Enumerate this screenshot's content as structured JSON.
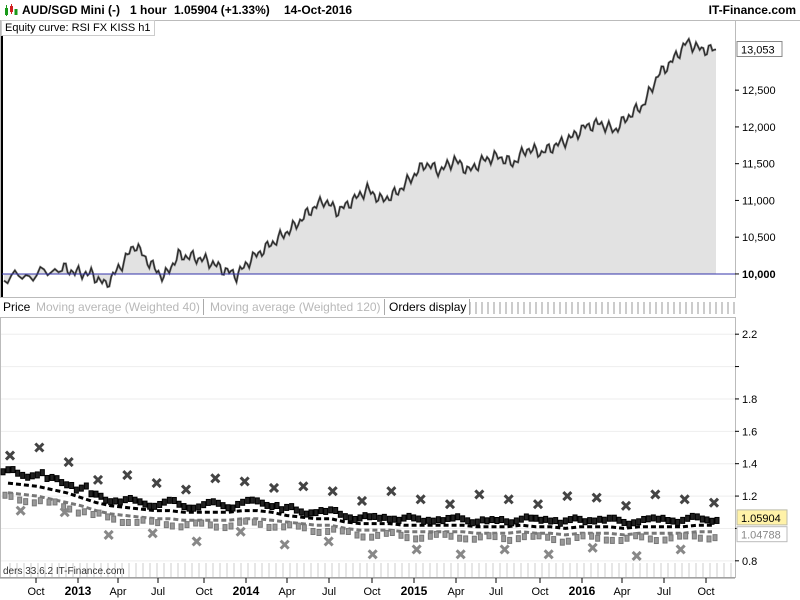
{
  "header": {
    "symbol": "AUD/SGD Mini (-)",
    "timeframe": "1 hour",
    "price_change": "1.05904 (+1.33%)",
    "date": "14-Oct-2016",
    "brand": "IT-Finance.com",
    "icon": "candlestick-chart-icon"
  },
  "equity_panel": {
    "label": "Equity curve: RSI FX KISS h1",
    "last_value": "13,053",
    "baseline_label": "10,000"
  },
  "price_panel": {
    "tabs": [
      "Price",
      "Moving average (Weighted 40)",
      "Moving average (Weighted 120)",
      "Orders display"
    ],
    "last_price": "1.05904",
    "second_price": "1.04788"
  },
  "footer_text": "ders 33.6.2 IT-Finance.com",
  "colors": {
    "equity_fill": "#e2e2e2",
    "equity_line": "#222222",
    "baseline": "#3333aa",
    "price_marker": "#fff2a8",
    "second_marker": "#ffffff"
  },
  "chart_data": [
    {
      "type": "area",
      "title": "Equity curve: RSI FX KISS h1",
      "x_label": "",
      "y_label": "",
      "ylim": [
        9700,
        13400
      ],
      "y_ticks": [
        "10,000",
        "10,500",
        "11,000",
        "11,500",
        "12,000",
        "12,500",
        "13,053"
      ],
      "baseline": 10000,
      "x_range": [
        "2012-09",
        "2016-10"
      ],
      "series": [
        {
          "points": [
            [
              "2012-09",
              9950
            ],
            [
              "2012-11",
              9980
            ],
            [
              "2013-01",
              10080
            ],
            [
              "2013-02",
              10020
            ],
            [
              "2013-03",
              10000
            ],
            [
              "2013-04",
              9850
            ],
            [
              "2013-05",
              10100
            ],
            [
              "2013-06",
              10400
            ],
            [
              "2013-07",
              10150
            ],
            [
              "2013-08",
              9950
            ],
            [
              "2013-09",
              10250
            ],
            [
              "2013-10",
              10230
            ],
            [
              "2013-11",
              10180
            ],
            [
              "2013-12",
              10070
            ],
            [
              "2014-01",
              9980
            ],
            [
              "2014-02",
              10200
            ],
            [
              "2014-03",
              10350
            ],
            [
              "2014-04",
              10500
            ],
            [
              "2014-05",
              10650
            ],
            [
              "2014-06",
              10850
            ],
            [
              "2014-07",
              11000
            ],
            [
              "2014-08",
              10850
            ],
            [
              "2014-09",
              11000
            ],
            [
              "2014-10",
              11150
            ],
            [
              "2014-11",
              11000
            ],
            [
              "2014-12",
              11100
            ],
            [
              "2015-01",
              11300
            ],
            [
              "2015-02",
              11500
            ],
            [
              "2015-03",
              11400
            ],
            [
              "2015-04",
              11550
            ],
            [
              "2015-05",
              11400
            ],
            [
              "2015-06",
              11550
            ],
            [
              "2015-07",
              11600
            ],
            [
              "2015-08",
              11500
            ],
            [
              "2015-09",
              11700
            ],
            [
              "2015-10",
              11650
            ],
            [
              "2015-11",
              11750
            ],
            [
              "2015-12",
              11850
            ],
            [
              "2016-01",
              12000
            ],
            [
              "2016-02",
              12050
            ],
            [
              "2016-03",
              11950
            ],
            [
              "2016-04",
              12150
            ],
            [
              "2016-05",
              12300
            ],
            [
              "2016-06",
              12700
            ],
            [
              "2016-07",
              12900
            ],
            [
              "2016-08",
              13150
            ],
            [
              "2016-09",
              13050
            ],
            [
              "2016-10",
              13053
            ]
          ]
        }
      ]
    },
    {
      "type": "line",
      "title": "Price",
      "ylim": [
        0.7,
        2.3
      ],
      "y_ticks": [
        0.8,
        1.0,
        1.2,
        1.4,
        1.6,
        1.8,
        2.0,
        2.2
      ],
      "y_ticks_labeled": [
        "0.8",
        "1.2",
        "1.4",
        "1.6",
        "1.8",
        "2.2"
      ],
      "x_ticks": [
        "Oct",
        "2013",
        "Apr",
        "Jul",
        "Oct",
        "2014",
        "Apr",
        "Jul",
        "Oct",
        "2015",
        "Apr",
        "Jul",
        "Oct",
        "2016",
        "Apr",
        "Jul",
        "Oct"
      ],
      "x_ticks_bold": [
        "2013",
        "2014",
        "2015",
        "2016"
      ],
      "series": [
        {
          "name": "Price",
          "values": [
            1.35,
            1.33,
            1.34,
            1.3,
            1.28,
            1.25,
            1.2,
            1.18,
            1.17,
            1.16,
            1.15,
            1.16,
            1.14,
            1.14,
            1.15,
            1.14,
            1.16,
            1.16,
            1.15,
            1.12,
            1.1,
            1.11,
            1.1,
            1.08,
            1.07,
            1.06,
            1.07,
            1.06,
            1.05,
            1.06,
            1.05,
            1.06,
            1.05,
            1.04,
            1.05,
            1.06,
            1.05,
            1.06,
            1.04,
            1.05,
            1.06,
            1.05,
            1.04,
            1.05,
            1.05,
            1.06,
            1.05,
            1.06,
            1.059
          ]
        },
        {
          "name": "Moving average (Weighted 40)",
          "values": [
            1.28,
            1.27,
            1.26,
            1.24,
            1.22,
            1.19,
            1.16,
            1.14,
            1.13,
            1.12,
            1.11,
            1.11,
            1.1,
            1.1,
            1.1,
            1.1,
            1.11,
            1.11,
            1.1,
            1.08,
            1.07,
            1.06,
            1.06,
            1.04,
            1.03,
            1.03,
            1.03,
            1.02,
            1.02,
            1.02,
            1.02,
            1.02,
            1.01,
            1.01,
            1.01,
            1.02,
            1.01,
            1.01,
            1.0,
            1.01,
            1.01,
            1.01,
            1.0,
            1.01,
            1.01,
            1.01,
            1.01,
            1.02,
            1.02
          ]
        },
        {
          "name": "Moving average (Weighted 120)",
          "values": [
            1.22,
            1.21,
            1.2,
            1.18,
            1.16,
            1.14,
            1.11,
            1.09,
            1.08,
            1.07,
            1.06,
            1.06,
            1.05,
            1.05,
            1.05,
            1.05,
            1.06,
            1.06,
            1.05,
            1.04,
            1.03,
            1.02,
            1.02,
            1.0,
            0.99,
            0.99,
            0.99,
            0.98,
            0.98,
            0.98,
            0.98,
            0.98,
            0.97,
            0.97,
            0.97,
            0.98,
            0.97,
            0.97,
            0.96,
            0.97,
            0.97,
            0.97,
            0.96,
            0.97,
            0.97,
            0.97,
            0.97,
            0.98,
            0.98
          ]
        }
      ]
    }
  ]
}
